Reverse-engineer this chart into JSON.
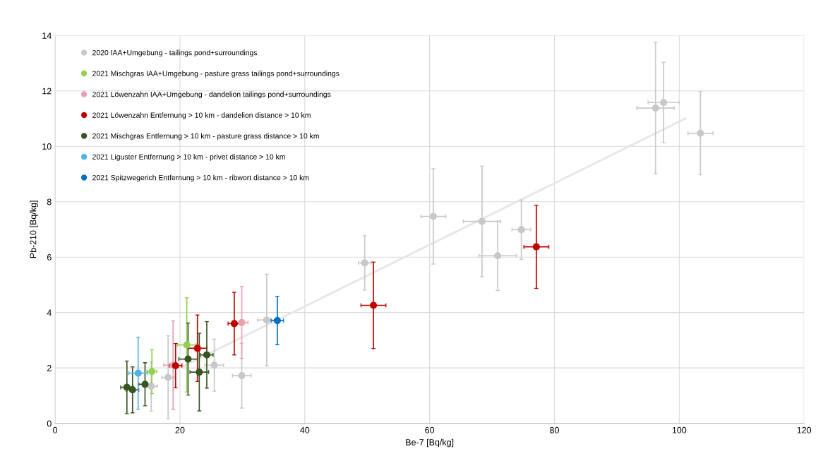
{
  "chart_data": {
    "type": "scatter",
    "xlabel": "Be-7 [Bq/kg]",
    "ylabel": "Pb-210 [Bq/kg]",
    "xlim": [
      0,
      120
    ],
    "ylim": [
      0,
      14
    ],
    "xticks": [
      0,
      20,
      40,
      60,
      80,
      100,
      120
    ],
    "yticks": [
      0,
      2,
      4,
      6,
      8,
      10,
      12,
      14
    ],
    "grid": true,
    "legend": "top left",
    "marker": "circle",
    "series": [
      {
        "name": "2020 IAA+Umgebung - tailings pond+surroundings",
        "color": "#c8c8c8",
        "x": [
          15.4,
          18.1,
          25.5,
          29.9,
          33.9,
          49.6,
          60.6,
          68.4,
          70.9,
          74.7,
          96.2,
          97.5,
          103.4
        ],
        "values": [
          1.34,
          1.66,
          2.1,
          1.72,
          3.73,
          5.79,
          7.47,
          7.29,
          6.05,
          6.99,
          11.38,
          11.58,
          10.47
        ],
        "errors": [
          0.9,
          1.5,
          0.94,
          1.17,
          1.65,
          0.98,
          1.72,
          2.0,
          1.25,
          1.07,
          2.37,
          1.45,
          1.5
        ],
        "xerrors": [
          1,
          1,
          1.5,
          1.5,
          1.5,
          1,
          2,
          3,
          3,
          1.5,
          3,
          2.5,
          2
        ]
      },
      {
        "name": "2021 Mischgras IAA+Umgebung - pasture grass tailings pond+surroundings",
        "color": "#92d050",
        "x": [
          15.5,
          21.1
        ],
        "values": [
          1.87,
          2.83
        ],
        "errors": [
          0.8,
          1.7
        ],
        "xerrors": [
          0.8,
          1.5
        ]
      },
      {
        "name": "2021 Löwenzahn IAA+Umgebung - dandelion tailings pond+surroundings",
        "color": "#e6a0b0",
        "x": [
          18.9,
          29.9
        ],
        "values": [
          2.1,
          3.64
        ],
        "errors": [
          1.6,
          1.3
        ],
        "xerrors": [
          1.5,
          1
        ]
      },
      {
        "name": "2021 Löwenzahn Entfernung > 10 km - dandelion distance > 10 km",
        "color": "#c00000",
        "x": [
          19.3,
          22.8,
          28.7,
          51.0,
          77.1
        ],
        "values": [
          2.08,
          2.71,
          3.6,
          4.26,
          6.37
        ],
        "errors": [
          0.8,
          1.2,
          1.13,
          1.56,
          1.5
        ],
        "xerrors": [
          1,
          1.5,
          1,
          2,
          2
        ]
      },
      {
        "name": "2021 Mischgras Entfernung > 10 km - pasture grass distance > 10 km",
        "color": "#375623",
        "x": [
          11.5,
          12.4,
          14.4,
          21.3,
          23.1,
          24.3
        ],
        "values": [
          1.3,
          1.21,
          1.41,
          2.32,
          1.85,
          2.47
        ],
        "errors": [
          0.95,
          0.83,
          0.78,
          1.3,
          1.4,
          1.2
        ],
        "xerrors": [
          1,
          1,
          1,
          1.5,
          1.5,
          1
        ]
      },
      {
        "name": "2021 Liguster Entfernung > 10 km - privet distance > 10 km",
        "color": "#4fb3e6",
        "x": [
          13.3
        ],
        "values": [
          1.81
        ],
        "errors": [
          1.3
        ],
        "xerrors": [
          1.5
        ]
      },
      {
        "name": "2021 Spitzwegerich Entfernung > 10 km - ribwort distance > 10 km",
        "color": "#0070c0",
        "x": [
          35.6
        ],
        "values": [
          3.71
        ],
        "errors": [
          0.87
        ],
        "xerrors": [
          1
        ]
      },
      {
        "type": "line",
        "marker": "none",
        "color": "#e6e6e6",
        "x": [
          20,
          101
        ],
        "values": [
          2.0,
          11.0
        ]
      }
    ]
  }
}
